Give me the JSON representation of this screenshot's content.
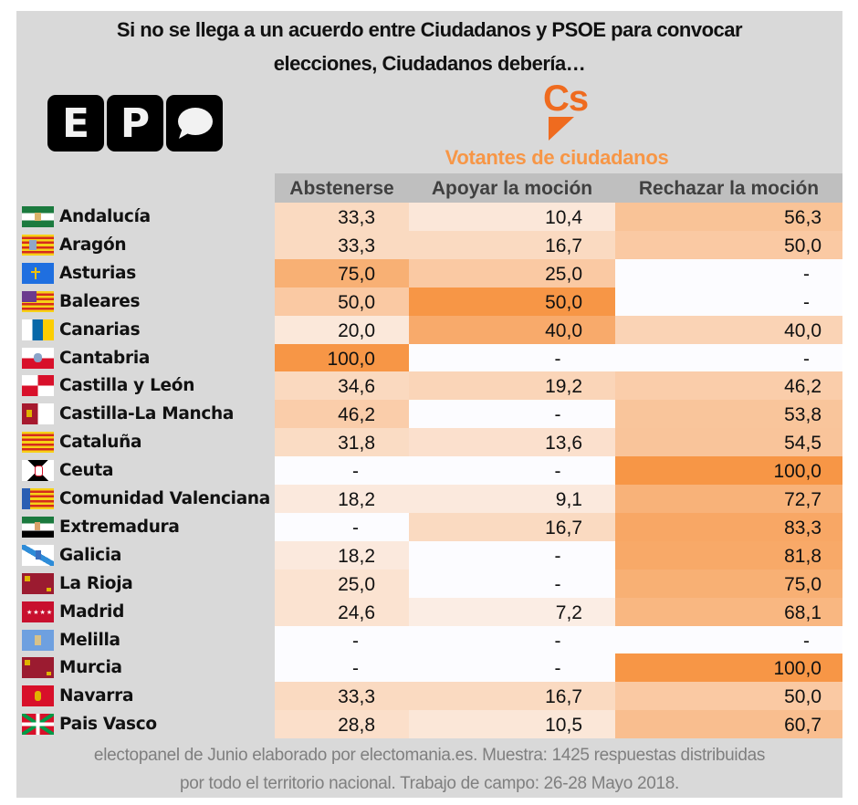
{
  "header": {
    "title_line1": "Si no se llega a un acuerdo entre Ciudadanos y PSOE para convocar",
    "title_line2": "elecciones, Ciudadanos debería…",
    "logo_letters": [
      "E",
      "P",
      "💬"
    ],
    "party_logo_text": "Cs",
    "subtitle": "Votantes de ciudadanos"
  },
  "colors": {
    "panel": "#d9d9d9",
    "header_bg": "#bfbfbf",
    "accent": "#f79646",
    "party": "#ef6b1f",
    "empty_cell": "#fcfcff"
  },
  "chart_data": {
    "type": "heatmap",
    "title": "Si no se llega a un acuerdo entre Ciudadanos y PSOE para convocar elecciones, Ciudadanos debería…",
    "subtitle": "Votantes de ciudadanos",
    "columns": [
      "Abstenerse",
      "Apoyar la moción",
      "Rechazar la moción"
    ],
    "color_scale": "per-column white-to-orange (#fcfcff → #f79646)",
    "rows": [
      {
        "region": "Andalucía",
        "flag": "andalucia",
        "values": [
          "33,3",
          "10,4",
          "56,3"
        ]
      },
      {
        "region": "Aragón",
        "flag": "aragon",
        "values": [
          "33,3",
          "16,7",
          "50,0"
        ]
      },
      {
        "region": "Asturias",
        "flag": "asturias",
        "values": [
          "75,0",
          "25,0",
          "-"
        ]
      },
      {
        "region": "Baleares",
        "flag": "baleares",
        "values": [
          "50,0",
          "50,0",
          "-"
        ]
      },
      {
        "region": "Canarias",
        "flag": "canarias",
        "values": [
          "20,0",
          "40,0",
          "40,0"
        ]
      },
      {
        "region": "Cantabria",
        "flag": "cantabria",
        "values": [
          "100,0",
          "-",
          "-"
        ]
      },
      {
        "region": "Castilla y León",
        "flag": "castilla-leon",
        "values": [
          "34,6",
          "19,2",
          "46,2"
        ]
      },
      {
        "region": "Castilla-La Mancha",
        "flag": "castilla-la-mancha",
        "values": [
          "46,2",
          "-",
          "53,8"
        ]
      },
      {
        "region": "Cataluña",
        "flag": "cataluna",
        "values": [
          "31,8",
          "13,6",
          "54,5"
        ]
      },
      {
        "region": "Ceuta",
        "flag": "ceuta",
        "values": [
          "-",
          "-",
          "100,0"
        ]
      },
      {
        "region": "Comunidad Valenciana",
        "flag": "valencia",
        "values": [
          "18,2",
          "9,1",
          "72,7"
        ]
      },
      {
        "region": "Extremadura",
        "flag": "extremadura",
        "values": [
          "-",
          "16,7",
          "83,3"
        ]
      },
      {
        "region": "Galicia",
        "flag": "galicia",
        "values": [
          "18,2",
          "-",
          "81,8"
        ]
      },
      {
        "region": "La Rioja",
        "flag": "murcia",
        "values": [
          "25,0",
          "-",
          "75,0"
        ]
      },
      {
        "region": "Madrid",
        "flag": "madrid",
        "values": [
          "24,6",
          "7,2",
          "68,1"
        ]
      },
      {
        "region": "Melilla",
        "flag": "melilla",
        "values": [
          "-",
          "-",
          "-"
        ]
      },
      {
        "region": "Murcia",
        "flag": "murcia",
        "values": [
          "-",
          "-",
          "100,0"
        ]
      },
      {
        "region": "Navarra",
        "flag": "navarra",
        "values": [
          "33,3",
          "16,7",
          "50,0"
        ]
      },
      {
        "region": "Pais Vasco",
        "flag": "pais-vasco",
        "values": [
          "28,8",
          "10,5",
          "60,7"
        ]
      }
    ]
  },
  "footer": {
    "line1": "electopanel de Junio elaborado por electomania.es. Muestra: 1425 respuestas distribuidas",
    "line2": "por todo el territorio nacional. Trabajo de campo: 26-28 Mayo 2018."
  }
}
